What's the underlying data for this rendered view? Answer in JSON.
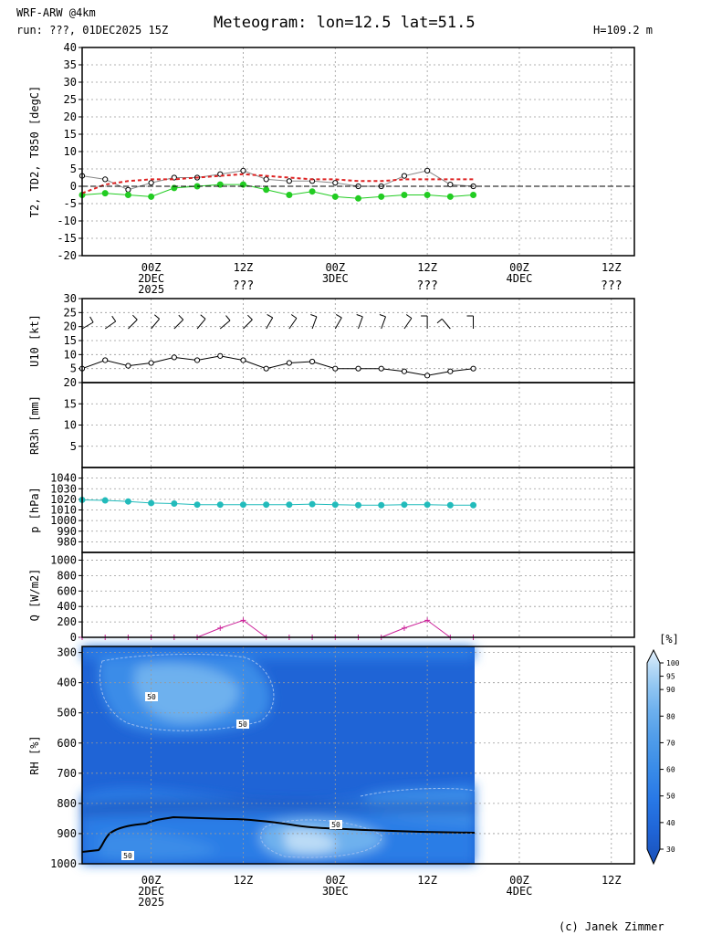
{
  "header": {
    "model": "WRF-ARW @4km",
    "run": "run: ???, 01DEC2025 15Z",
    "title": "Meteogram: lon=12.5 lat=51.5",
    "height": "H=109.2 m"
  },
  "footer": {
    "copyright": "(c) Janek Zimmer"
  },
  "time_axis": {
    "hours_range": [
      0,
      120
    ],
    "ticks": [
      {
        "h": 9,
        "labels": [
          "00Z",
          "2DEC",
          "2025"
        ]
      },
      {
        "h": 21,
        "labels": [
          "12Z"
        ]
      },
      {
        "h": 33,
        "labels": [
          "00Z",
          "3DEC"
        ]
      },
      {
        "h": 45,
        "labels": [
          "12Z"
        ]
      },
      {
        "h": 57,
        "labels": [
          "00Z",
          "4DEC"
        ]
      },
      {
        "h": 69,
        "labels": [
          "12Z"
        ]
      }
    ],
    "day_labels": [
      {
        "h": 21,
        "label": "???"
      },
      {
        "h": 45,
        "label": "???"
      },
      {
        "h": 69,
        "label": "???"
      }
    ]
  },
  "chart_data": [
    {
      "type": "line",
      "ylabel": "T2, TD2, T850 [degC]",
      "ylim": [
        -20,
        40
      ],
      "yticks": [
        -20,
        -15,
        -10,
        -5,
        0,
        5,
        10,
        15,
        20,
        25,
        30,
        35,
        40
      ],
      "grid": true,
      "x_hours": [
        0,
        3,
        6,
        9,
        12,
        15,
        18,
        21,
        24,
        27,
        30,
        33,
        36,
        39,
        42,
        45,
        48,
        51
      ],
      "series": [
        {
          "key": "t2",
          "color": "#000000",
          "marker": "open-circle",
          "line_color": "#888888",
          "values": [
            3,
            2,
            -1,
            1,
            2.5,
            2.5,
            3.5,
            4.5,
            2,
            1.5,
            1.5,
            1,
            0,
            0,
            3,
            4.5,
            0.5,
            0
          ]
        },
        {
          "key": "td2",
          "color": "#22cc22",
          "marker": "filled-circle",
          "values": [
            -2.5,
            -2,
            -2.5,
            -3,
            -0.5,
            0,
            0.5,
            0.5,
            -1,
            -2.5,
            -1.5,
            -3,
            -3.5,
            -3,
            -2.5,
            -2.5,
            -3,
            -2.5
          ]
        },
        {
          "key": "t850",
          "color": "#dd2222",
          "marker": "none",
          "dashed": true,
          "values": [
            -2,
            0.5,
            1.5,
            2,
            2,
            2.5,
            3,
            3.5,
            3,
            2.5,
            2,
            2,
            1.5,
            1.5,
            2,
            2,
            2,
            2
          ]
        }
      ]
    },
    {
      "type": "line",
      "ylabel": "U10 [kt]",
      "ylim": [
        0,
        30
      ],
      "yticks": [
        5,
        10,
        15,
        20,
        25,
        30
      ],
      "grid": true,
      "x_hours": [
        0,
        3,
        6,
        9,
        12,
        15,
        18,
        21,
        24,
        27,
        30,
        33,
        36,
        39,
        42,
        45,
        48,
        51
      ],
      "series": [
        {
          "key": "u10",
          "color": "#000000",
          "marker": "open-circle",
          "values": [
            5,
            8,
            6,
            7,
            9,
            8,
            9.5,
            8,
            5,
            7,
            7.5,
            5,
            5,
            5,
            4,
            2.5,
            4,
            5
          ]
        }
      ],
      "wind_barbs_dir_deg": [
        240,
        235,
        225,
        220,
        225,
        220,
        230,
        225,
        210,
        215,
        200,
        210,
        200,
        200,
        215,
        180,
        140,
        180
      ]
    },
    {
      "type": "bar",
      "ylabel": "RR3h [mm]",
      "ylim": [
        0,
        20
      ],
      "yticks": [
        5,
        10,
        15,
        20
      ],
      "grid": true,
      "x_hours": [],
      "values": []
    },
    {
      "type": "line",
      "ylabel": "p [hPa]",
      "ylim": [
        970,
        1050
      ],
      "yticks": [
        980,
        990,
        1000,
        1010,
        1020,
        1030,
        1040
      ],
      "grid": true,
      "x_hours": [
        0,
        3,
        6,
        9,
        12,
        15,
        18,
        21,
        24,
        27,
        30,
        33,
        36,
        39,
        42,
        45,
        48,
        51
      ],
      "series": [
        {
          "key": "p",
          "color": "#22bbbb",
          "marker": "filled-circle",
          "values": [
            1019.5,
            1019,
            1018,
            1016.5,
            1016,
            1015,
            1015,
            1015,
            1015,
            1015,
            1015.5,
            1015,
            1014.5,
            1014.5,
            1015,
            1015,
            1014.5,
            1014.5
          ]
        }
      ]
    },
    {
      "type": "line",
      "ylabel": "Q [W/m2]",
      "ylim": [
        0,
        1100
      ],
      "yticks": [
        0,
        200,
        400,
        600,
        800,
        1000
      ],
      "grid": true,
      "x_hours": [
        0,
        3,
        6,
        9,
        12,
        15,
        18,
        21,
        24,
        27,
        30,
        33,
        36,
        39,
        42,
        45,
        48,
        51
      ],
      "series": [
        {
          "key": "q",
          "color": "#cc2299",
          "marker": "plus",
          "values": [
            0,
            0,
            0,
            0,
            0,
            0,
            120,
            220,
            0,
            0,
            0,
            0,
            0,
            0,
            120,
            220,
            0,
            0
          ]
        }
      ]
    },
    {
      "type": "heatmap",
      "ylabel": "RH [%]",
      "yticks": [
        300,
        400,
        500,
        600,
        700,
        800,
        900,
        1000
      ],
      "data_hours": [
        0,
        51
      ],
      "contour_label": "50",
      "colorbar": {
        "title": "[%]",
        "levels": [
          30,
          40,
          50,
          60,
          70,
          80,
          90,
          95,
          100
        ],
        "colors": [
          "#1a50b8",
          "#1f64d6",
          "#2878e6",
          "#3a8ce8",
          "#529eea",
          "#6eb1ee",
          "#94c8f2",
          "#bcdcf6",
          "#e4f1fc"
        ]
      }
    }
  ]
}
